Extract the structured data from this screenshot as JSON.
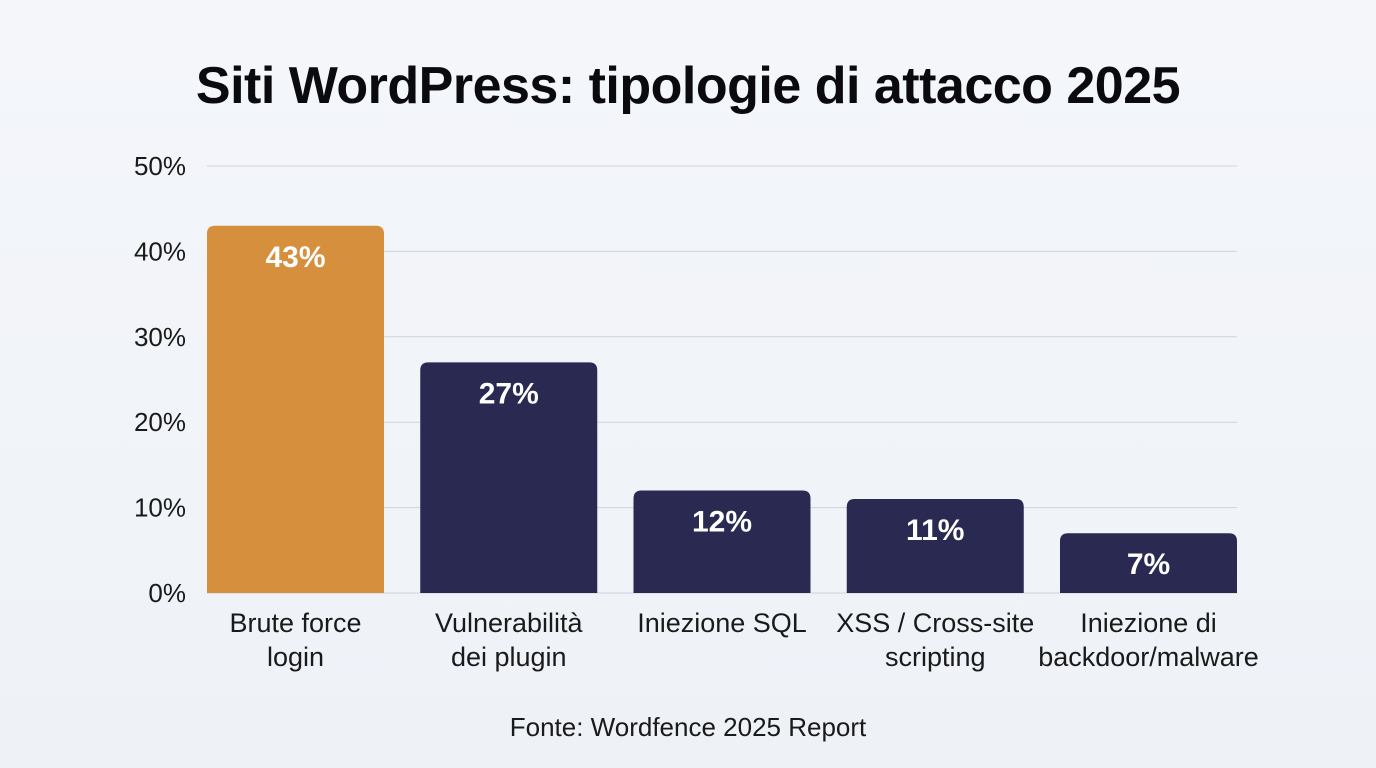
{
  "chart_data": {
    "type": "bar",
    "title": "Siti WordPress: tipologie di attacco 2025",
    "source": "Fonte: Wordfence 2025 Report",
    "categories": [
      [
        "Brute force",
        "login"
      ],
      [
        "Vulnerabilità",
        "dei plugin"
      ],
      [
        "Iniezione SQL"
      ],
      [
        "XSS / Cross-site",
        "scripting"
      ],
      [
        "Iniezione di",
        "backdoor/malware"
      ]
    ],
    "values": [
      43,
      27,
      12,
      11,
      7
    ],
    "data_labels": [
      "43%",
      "27%",
      "12%",
      "11%",
      "7%"
    ],
    "y_ticks": [
      "0%",
      "10%",
      "20%",
      "30%",
      "40%",
      "50%"
    ],
    "ylim": [
      0,
      50
    ],
    "grid": true,
    "colors": {
      "highlight": "#d68f3c",
      "bar": "#2a2952",
      "grid": "#cfd3da"
    },
    "highlight_index": 0
  }
}
